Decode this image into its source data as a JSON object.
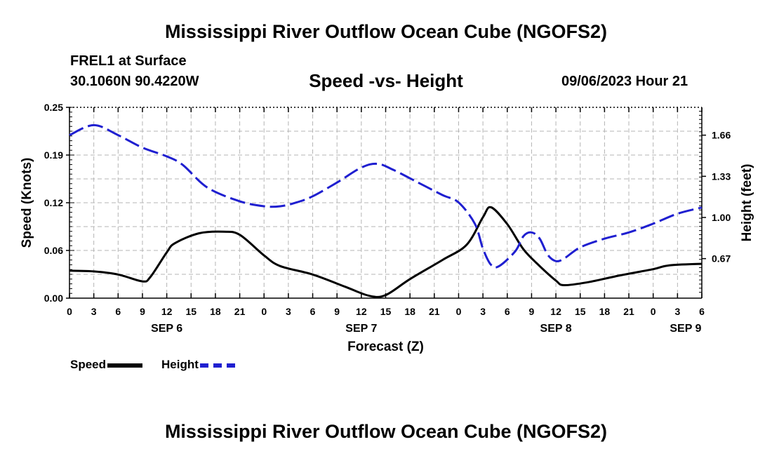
{
  "header": {
    "title": "Mississippi River Outflow Ocean Cube (NGOFS2)",
    "station": "FREL1 at Surface",
    "coords": "30.1060N  90.4220W",
    "subtitle": "Speed -vs- Height",
    "datetime": "09/06/2023 Hour 21"
  },
  "footer": {
    "title": "Mississippi River Outflow Ocean Cube (NGOFS2)"
  },
  "legend": {
    "speed_label": "Speed",
    "height_label": "Height"
  },
  "colors": {
    "speed": "#000000",
    "height": "#1f1fd0",
    "grid": "#b4b4b4"
  },
  "chart_data": {
    "type": "line",
    "xlabel": "Forecast (Z)",
    "ylabel_left": "Speed (Knots)",
    "ylabel_right": "Height (feet)",
    "x_unit": "hours since SEP 6 00Z",
    "xlim": [
      0,
      78
    ],
    "ylim_left": [
      0,
      0.25
    ],
    "ylim_right": [
      0.353,
      1.883
    ],
    "left_ticks": [
      {
        "value": 0,
        "label": "0.00"
      },
      {
        "value": 0.0625,
        "label": "0.06"
      },
      {
        "value": 0.125,
        "label": "0.12"
      },
      {
        "value": 0.1875,
        "label": "0.19"
      },
      {
        "value": 0.25,
        "label": "0.25"
      }
    ],
    "right_ticks": [
      {
        "value": 0.67,
        "label": "0.67"
      },
      {
        "value": 1.0,
        "label": "1.00"
      },
      {
        "value": 1.33,
        "label": "1.33"
      },
      {
        "value": 1.66,
        "label": "1.66"
      }
    ],
    "x_ticks": [
      {
        "value": 0,
        "label": "0"
      },
      {
        "value": 3,
        "label": "3"
      },
      {
        "value": 6,
        "label": "6"
      },
      {
        "value": 9,
        "label": "9"
      },
      {
        "value": 12,
        "label": "12"
      },
      {
        "value": 15,
        "label": "15"
      },
      {
        "value": 18,
        "label": "18"
      },
      {
        "value": 21,
        "label": "21"
      },
      {
        "value": 24,
        "label": "0"
      },
      {
        "value": 27,
        "label": "3"
      },
      {
        "value": 30,
        "label": "6"
      },
      {
        "value": 33,
        "label": "9"
      },
      {
        "value": 36,
        "label": "12"
      },
      {
        "value": 39,
        "label": "15"
      },
      {
        "value": 42,
        "label": "18"
      },
      {
        "value": 45,
        "label": "21"
      },
      {
        "value": 48,
        "label": "0"
      },
      {
        "value": 51,
        "label": "3"
      },
      {
        "value": 54,
        "label": "6"
      },
      {
        "value": 57,
        "label": "9"
      },
      {
        "value": 60,
        "label": "12"
      },
      {
        "value": 63,
        "label": "15"
      },
      {
        "value": 66,
        "label": "18"
      },
      {
        "value": 69,
        "label": "21"
      },
      {
        "value": 72,
        "label": "0"
      },
      {
        "value": 75,
        "label": "3"
      },
      {
        "value": 78,
        "label": "6"
      }
    ],
    "day_labels": [
      {
        "value": 12,
        "label": "SEP 6"
      },
      {
        "value": 36,
        "label": "SEP 7"
      },
      {
        "value": 60,
        "label": "SEP 8"
      },
      {
        "value": 76,
        "label": "SEP 9"
      }
    ],
    "series": [
      {
        "name": "Speed",
        "axis": "left",
        "style": "solid",
        "x": [
          0,
          3,
          6,
          9,
          10,
          12,
          13,
          16,
          19,
          21,
          24,
          26,
          30,
          34,
          37,
          39,
          42,
          46,
          49,
          51,
          52,
          54,
          56,
          58,
          60,
          61,
          64,
          68,
          72,
          74,
          78
        ],
        "y": [
          0.036,
          0.035,
          0.031,
          0.022,
          0.028,
          0.06,
          0.072,
          0.085,
          0.087,
          0.083,
          0.056,
          0.042,
          0.031,
          0.015,
          0.003,
          0.004,
          0.025,
          0.05,
          0.07,
          0.106,
          0.119,
          0.097,
          0.064,
          0.042,
          0.023,
          0.017,
          0.021,
          0.03,
          0.038,
          0.043,
          0.045
        ]
      },
      {
        "name": "Height",
        "axis": "right",
        "style": "dashed",
        "x": [
          0,
          3,
          6,
          9,
          12,
          14,
          17,
          21,
          24,
          26,
          28,
          30,
          33,
          36,
          38,
          40,
          43,
          46,
          48,
          50,
          51,
          52,
          53,
          55,
          56,
          57,
          58,
          59,
          60,
          61,
          63,
          66,
          69,
          72,
          75,
          78
        ],
        "y": [
          1.66,
          1.74,
          1.66,
          1.56,
          1.49,
          1.42,
          1.24,
          1.13,
          1.09,
          1.09,
          1.12,
          1.17,
          1.28,
          1.4,
          1.43,
          1.38,
          1.28,
          1.18,
          1.12,
          0.95,
          0.75,
          0.62,
          0.61,
          0.73,
          0.85,
          0.88,
          0.83,
          0.7,
          0.65,
          0.67,
          0.76,
          0.83,
          0.88,
          0.95,
          1.03,
          1.08
        ]
      }
    ]
  }
}
